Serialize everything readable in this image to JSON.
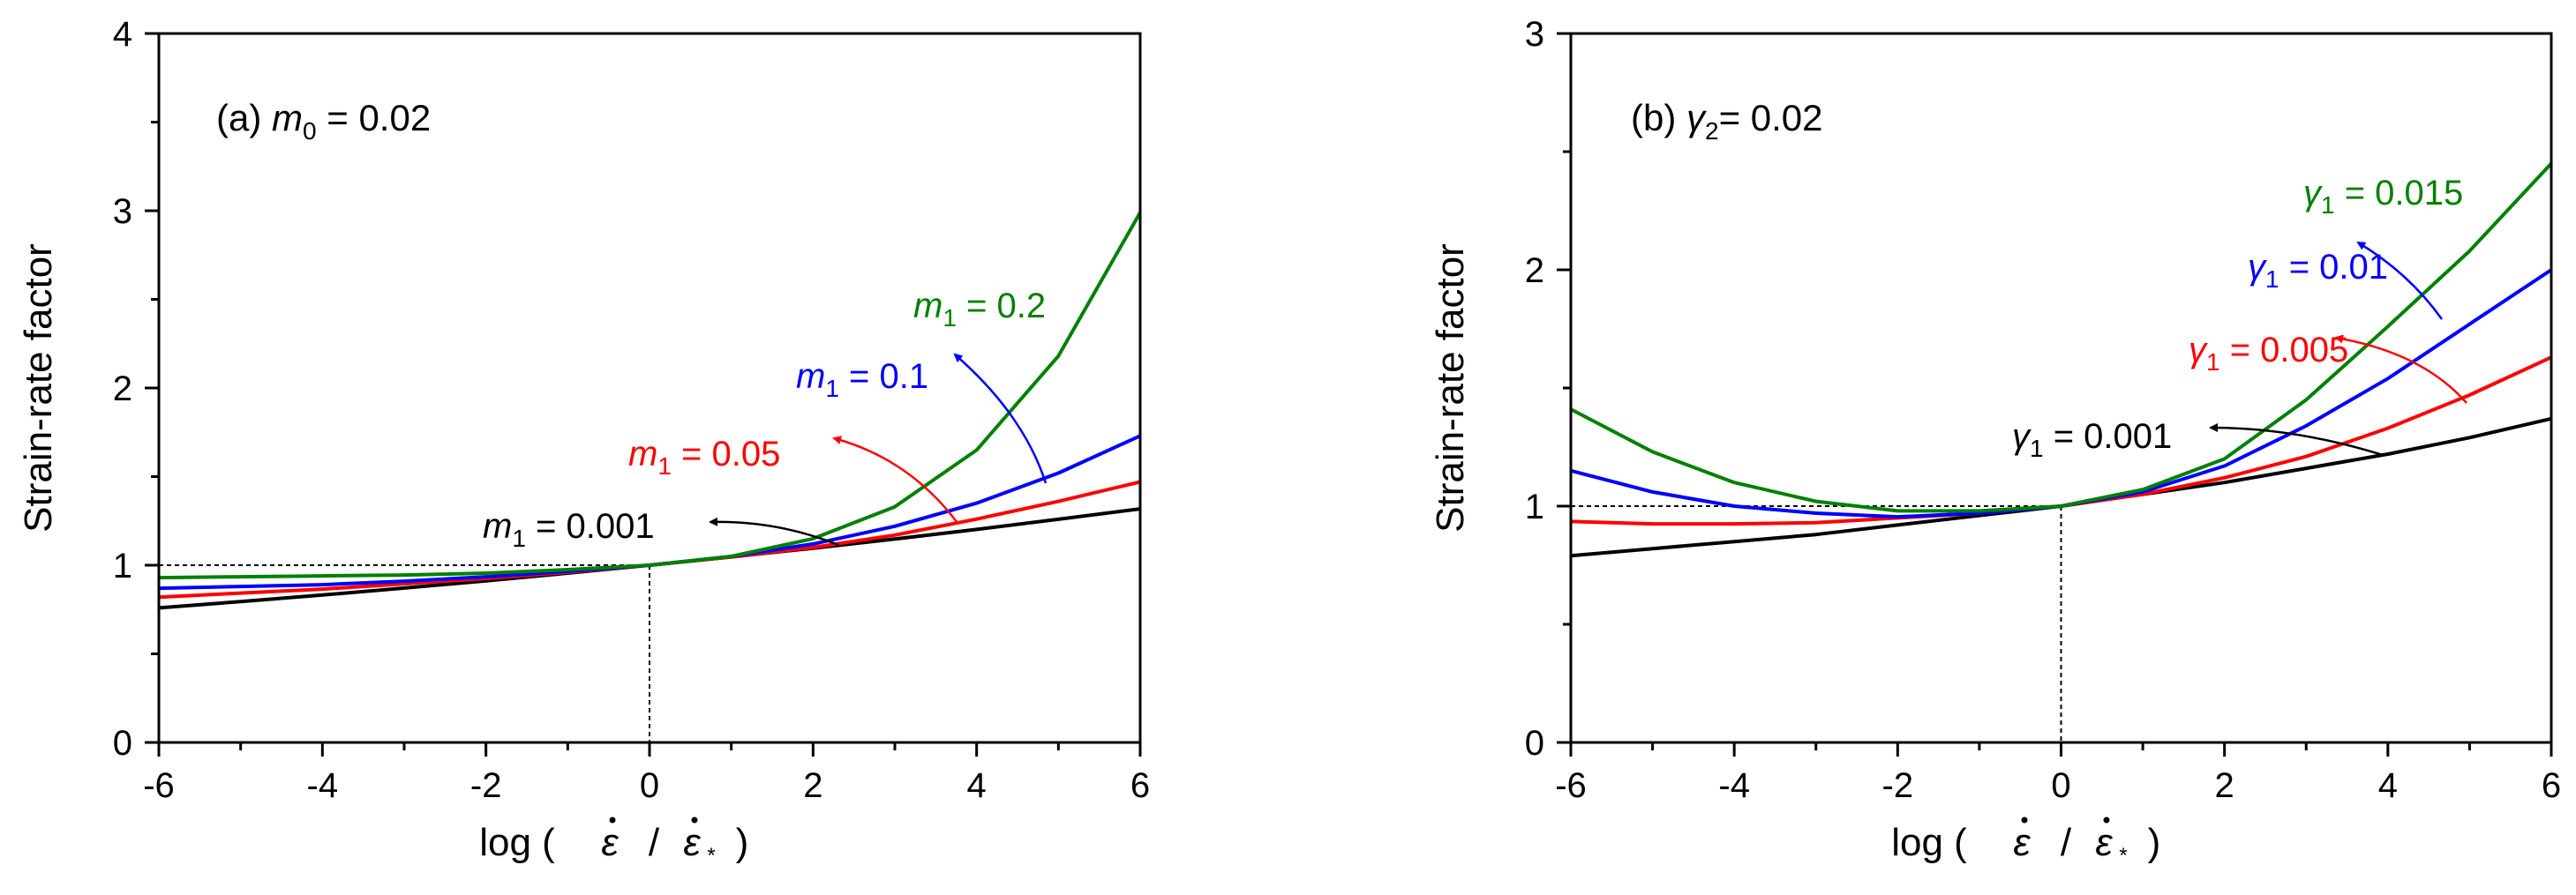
{
  "chart_data": [
    {
      "type": "line",
      "panel_label_prefix": "(a) ",
      "panel_label_var": "m",
      "panel_label_sub": "0",
      "panel_label_rest": " = 0.02",
      "xlabel_text": "log (",
      "xlabel_slash": "/",
      "xlabel_close": ")",
      "xlabel_num": "ε",
      "xlabel_den": "ε",
      "xlabel_den_sub": "*",
      "ylabel": "Strain-rate factor",
      "xlim": [
        -6,
        6
      ],
      "ylim": [
        0,
        4
      ],
      "xticks": [
        -6,
        -4,
        -2,
        0,
        2,
        4,
        6
      ],
      "xtick_labels": [
        "-6",
        "-4",
        "-2",
        "0",
        "2",
        "4",
        "6"
      ],
      "yticks": [
        0,
        1,
        2,
        3,
        4
      ],
      "ytick_labels": [
        "0",
        "1",
        "2",
        "3",
        "4"
      ],
      "reference": {
        "x": 0,
        "y": 1
      },
      "x": [
        -6,
        -5,
        -4,
        -3,
        -2,
        -1,
        0,
        1,
        2,
        3,
        4,
        5,
        6
      ],
      "series": [
        {
          "name": "m1 = 0.001",
          "color": "#000000",
          "values": [
            0.759,
            0.795,
            0.832,
            0.871,
            0.912,
            0.955,
            1.0,
            1.047,
            1.096,
            1.148,
            1.202,
            1.259,
            1.318
          ]
        },
        {
          "name": "m1 = 0.05",
          "color": "#ff0000",
          "values": [
            0.82,
            0.843,
            0.865,
            0.895,
            0.925,
            0.96,
            1.0,
            1.047,
            1.1,
            1.17,
            1.26,
            1.36,
            1.47
          ]
        },
        {
          "name": "m1 = 0.1",
          "color": "#0000ff",
          "values": [
            0.87,
            0.88,
            0.89,
            0.91,
            0.935,
            0.965,
            1.0,
            1.05,
            1.12,
            1.22,
            1.35,
            1.52,
            1.73
          ]
        },
        {
          "name": "m1 = 0.2",
          "color": "#008000",
          "values": [
            0.93,
            0.935,
            0.94,
            0.945,
            0.955,
            0.975,
            1.0,
            1.05,
            1.15,
            1.33,
            1.65,
            2.18,
            2.99
          ]
        }
      ],
      "annotations": [
        {
          "var": "m",
          "sub": "1",
          "text": " = 0.2",
          "color": "#008000"
        },
        {
          "var": "m",
          "sub": "1",
          "text": " = 0.1",
          "color": "#0000ff"
        },
        {
          "var": "m",
          "sub": "1",
          "text": " = 0.05",
          "color": "#ff0000"
        },
        {
          "var": "m",
          "sub": "1",
          "text": " = 0.001",
          "color": "#000000"
        }
      ]
    },
    {
      "type": "line",
      "panel_label_prefix": "(b) ",
      "panel_label_var": "γ",
      "panel_label_sub": "2",
      "panel_label_rest": "= 0.02",
      "xlabel_text": "log (",
      "xlabel_slash": "/",
      "xlabel_close": ")",
      "xlabel_num": "ε",
      "xlabel_den": "ε",
      "xlabel_den_sub": "*",
      "ylabel": "Strain-rate factor",
      "xlim": [
        -6,
        6
      ],
      "ylim": [
        0,
        3
      ],
      "xticks": [
        -6,
        -4,
        -2,
        0,
        2,
        4,
        6
      ],
      "xtick_labels": [
        "-6",
        "-4",
        "-2",
        "0",
        "2",
        "4",
        "6"
      ],
      "yticks": [
        0,
        1,
        2,
        3
      ],
      "ytick_labels": [
        "0",
        "1",
        "2",
        "3"
      ],
      "reference": {
        "x": 0,
        "y": 1
      },
      "x": [
        -6,
        -5,
        -4,
        -3,
        -2,
        -1,
        0,
        1,
        2,
        3,
        4,
        5,
        6
      ],
      "series": [
        {
          "name": "γ1 = 0.001",
          "color": "#000000",
          "values": [
            0.79,
            0.82,
            0.85,
            0.88,
            0.92,
            0.96,
            1.0,
            1.05,
            1.1,
            1.16,
            1.22,
            1.29,
            1.37
          ]
        },
        {
          "name": "γ1 = 0.005",
          "color": "#ff0000",
          "values": [
            0.935,
            0.925,
            0.925,
            0.93,
            0.95,
            0.97,
            1.0,
            1.05,
            1.12,
            1.21,
            1.33,
            1.47,
            1.63
          ]
        },
        {
          "name": "γ1 = 0.01",
          "color": "#0000ff",
          "values": [
            1.15,
            1.06,
            1.0,
            0.97,
            0.955,
            0.97,
            1.0,
            1.06,
            1.17,
            1.34,
            1.54,
            1.77,
            2.0
          ]
        },
        {
          "name": "γ1 = 0.015",
          "color": "#008000",
          "values": [
            1.41,
            1.23,
            1.1,
            1.02,
            0.98,
            0.98,
            1.0,
            1.07,
            1.2,
            1.45,
            1.76,
            2.08,
            2.45
          ]
        }
      ],
      "annotations": [
        {
          "var": "γ",
          "sub": "1",
          "text": " = 0.015",
          "color": "#008000"
        },
        {
          "var": "γ",
          "sub": "1",
          "text": " = 0.01",
          "color": "#0000ff"
        },
        {
          "var": "γ",
          "sub": "1",
          "text": " = 0.005",
          "color": "#ff0000"
        },
        {
          "var": "γ",
          "sub": "1",
          "text": " = 0.001",
          "color": "#000000"
        }
      ]
    }
  ]
}
